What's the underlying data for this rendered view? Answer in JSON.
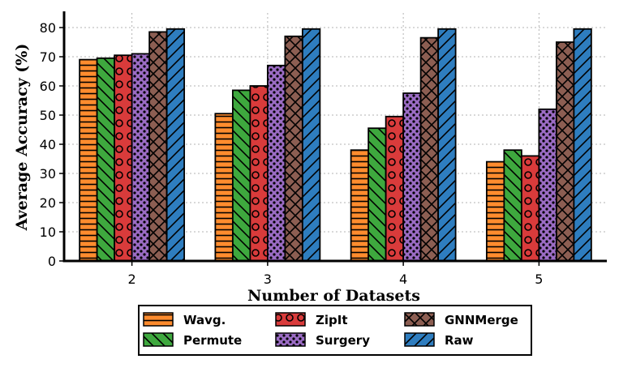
{
  "chart_data": {
    "type": "bar",
    "title": "",
    "xlabel": "Number of Datasets",
    "ylabel": "Average Accuracy (%)",
    "categories": [
      "2",
      "3",
      "4",
      "5"
    ],
    "ylim": [
      0,
      85
    ],
    "yticks": [
      0,
      10,
      20,
      30,
      40,
      50,
      60,
      70,
      80
    ],
    "grid": true,
    "legend_position": "bottom-center",
    "series": [
      {
        "name": "Wavg.",
        "color": "#ff8c2e",
        "hatch": "horizontal-lines",
        "values": [
          69,
          50.5,
          38,
          34
        ]
      },
      {
        "name": "Permute",
        "color": "#3ea83e",
        "hatch": "backslash-diagonal",
        "values": [
          69.5,
          58.5,
          45.5,
          38
        ]
      },
      {
        "name": "ZipIt",
        "color": "#d93b3b",
        "hatch": "circles",
        "values": [
          70.5,
          60,
          49.5,
          36
        ]
      },
      {
        "name": "Surgery",
        "color": "#9b6cc4",
        "hatch": "dots",
        "values": [
          71,
          67,
          57.5,
          52
        ]
      },
      {
        "name": "GNNMerge",
        "color": "#8c5e52",
        "hatch": "crosses",
        "values": [
          78.5,
          77,
          76.5,
          75
        ]
      },
      {
        "name": "Raw",
        "color": "#2e7dbf",
        "hatch": "slash-diagonal",
        "values": [
          79.5,
          79.5,
          79.5,
          79.5
        ]
      }
    ]
  }
}
